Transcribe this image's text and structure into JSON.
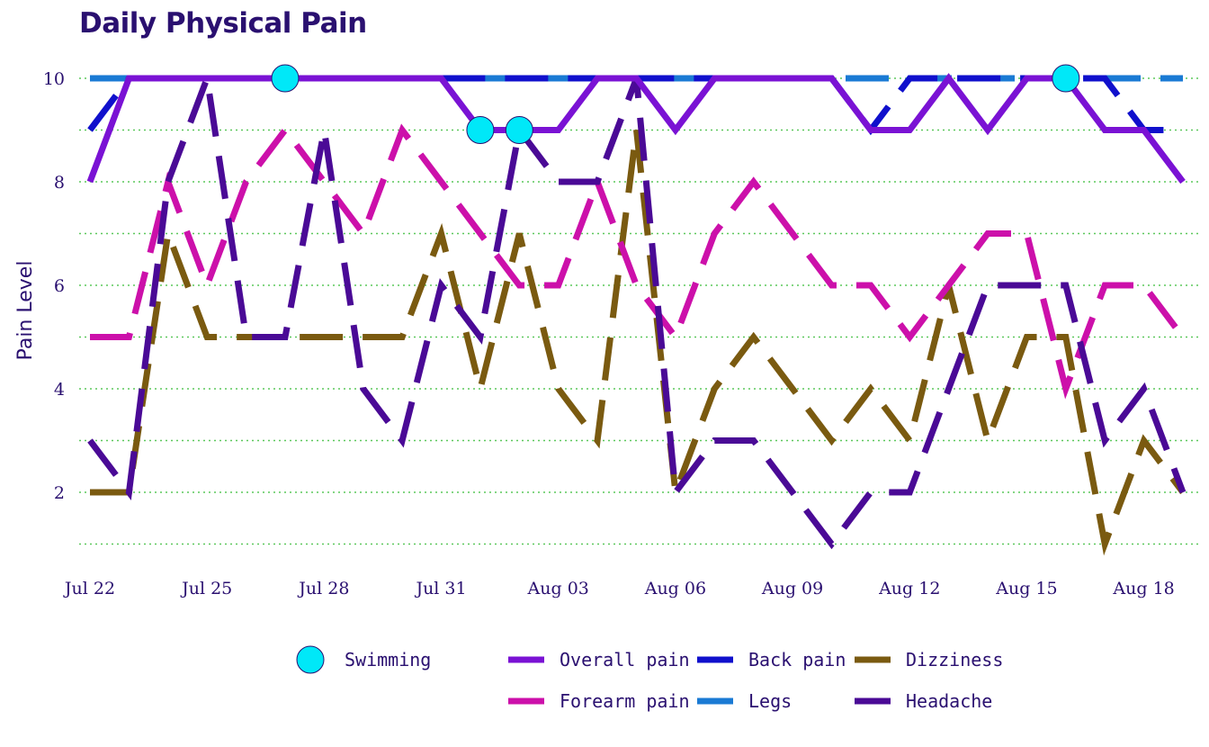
{
  "chart_data": {
    "type": "line",
    "title": "Daily Physical Pain",
    "xlabel": "",
    "ylabel": "Pain Level",
    "x_start_label": "Jul 22",
    "x": [
      "Jul 22",
      "Jul 23",
      "Jul 24",
      "Jul 25",
      "Jul 26",
      "Jul 27",
      "Jul 28",
      "Jul 29",
      "Jul 30",
      "Jul 31",
      "Aug 01",
      "Aug 02",
      "Aug 03",
      "Aug 04",
      "Aug 05",
      "Aug 06",
      "Aug 07",
      "Aug 08",
      "Aug 09",
      "Aug 10",
      "Aug 11",
      "Aug 12",
      "Aug 13",
      "Aug 14",
      "Aug 15",
      "Aug 16",
      "Aug 17",
      "Aug 18",
      "Aug 19"
    ],
    "xticks": [
      "Jul 22",
      "Jul 25",
      "Jul 28",
      "Jul 31",
      "Aug 03",
      "Aug 06",
      "Aug 09",
      "Aug 12",
      "Aug 15",
      "Aug 18"
    ],
    "yticks": [
      2,
      4,
      6,
      8,
      10
    ],
    "ylim": [
      0.5,
      10.5
    ],
    "grid": true,
    "legend_position": "bottom",
    "series": [
      {
        "name": "Overall pain",
        "color": "#7a12d4",
        "dash": "solid",
        "values": [
          8,
          10,
          10,
          10,
          10,
          10,
          10,
          10,
          10,
          10,
          9,
          9,
          9,
          10,
          10,
          9,
          10,
          10,
          10,
          10,
          9,
          9,
          10,
          9,
          10,
          10,
          9,
          9,
          8
        ]
      },
      {
        "name": "Back pain",
        "color": "#1010cc",
        "dash": "dashed",
        "values": [
          9,
          10,
          10,
          10,
          10,
          10,
          10,
          10,
          10,
          10,
          10,
          10,
          10,
          10,
          10,
          10,
          10,
          10,
          10,
          10,
          9,
          10,
          10,
          10,
          10,
          10,
          10,
          9,
          9
        ]
      },
      {
        "name": "Dizziness",
        "color": "#7a5a10",
        "dash": "dashed",
        "values": [
          2,
          2,
          7,
          5,
          5,
          5,
          5,
          5,
          5,
          7,
          4,
          7,
          4,
          3,
          9,
          2,
          4,
          5,
          4,
          3,
          4,
          3,
          6,
          3,
          5,
          5,
          1,
          3,
          2
        ]
      },
      {
        "name": "Forearm pain",
        "color": "#cc10aa",
        "dash": "dashed",
        "values": [
          5,
          5,
          8,
          6,
          8,
          9,
          8,
          7,
          9,
          8,
          7,
          6,
          6,
          8,
          6,
          5,
          7,
          8,
          7,
          6,
          6,
          5,
          6,
          7,
          7,
          4,
          6,
          6,
          5
        ]
      },
      {
        "name": "Legs",
        "color": "#1a7ad4",
        "dash": "dashed",
        "values": [
          10,
          10,
          10,
          10,
          10,
          10,
          10,
          10,
          10,
          10,
          10,
          10,
          10,
          10,
          10,
          10,
          10,
          10,
          10,
          10,
          10,
          10,
          10,
          10,
          10,
          10,
          10,
          10,
          10
        ]
      },
      {
        "name": "Headache",
        "color": "#4a0a96",
        "dash": "dashed",
        "values": [
          3,
          2,
          8,
          10,
          5,
          5,
          9,
          4,
          3,
          6,
          5,
          9,
          8,
          8,
          10,
          2,
          3,
          3,
          2,
          1,
          2,
          2,
          4,
          6,
          6,
          6,
          3,
          4,
          2
        ]
      }
    ],
    "markers": {
      "name": "Swimming",
      "color": "#00e8f8",
      "points": [
        {
          "x": "Jul 27",
          "y": 10
        },
        {
          "x": "Aug 01",
          "y": 9
        },
        {
          "x": "Aug 02",
          "y": 9
        },
        {
          "x": "Aug 16",
          "y": 10
        }
      ]
    },
    "legend": [
      {
        "label": "Swimming",
        "kind": "marker",
        "color": "#00e8f8"
      },
      {
        "label": "Overall pain",
        "kind": "solid",
        "color": "#7a12d4"
      },
      {
        "label": "Back pain",
        "kind": "dashed",
        "color": "#1010cc"
      },
      {
        "label": "Dizziness",
        "kind": "dashed",
        "color": "#7a5a10"
      },
      {
        "label": "Forearm pain",
        "kind": "dashed",
        "color": "#cc10aa"
      },
      {
        "label": "Legs",
        "kind": "dashed",
        "color": "#1a7ad4"
      },
      {
        "label": "Headache",
        "kind": "dashed",
        "color": "#4a0a96"
      }
    ]
  }
}
